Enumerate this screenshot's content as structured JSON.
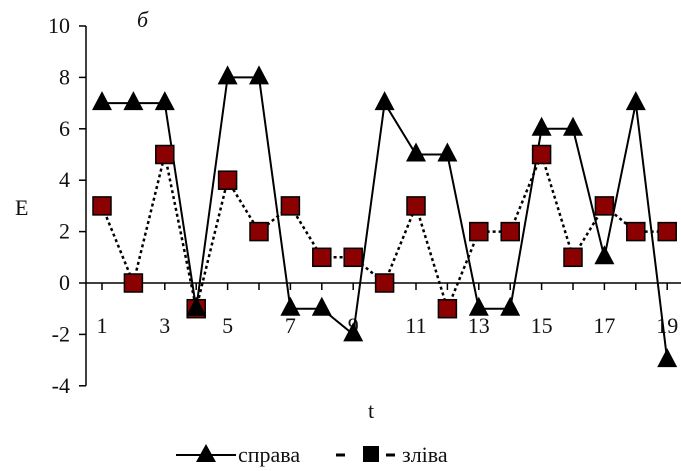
{
  "chart_data": {
    "type": "line",
    "title": "б",
    "xlabel": "t",
    "ylabel": "E",
    "ylim": [
      -4,
      10
    ],
    "yticks": [
      -4,
      -2,
      0,
      2,
      4,
      6,
      8,
      10
    ],
    "xticks": [
      1,
      3,
      5,
      7,
      9,
      11,
      13,
      15,
      17,
      19
    ],
    "x": [
      1,
      2,
      3,
      4,
      5,
      6,
      7,
      8,
      9,
      10,
      11,
      12,
      13,
      14,
      15,
      16,
      17,
      18,
      19
    ],
    "grid": false,
    "legend_position": "bottom",
    "series": [
      {
        "name": "справа",
        "marker": "triangle",
        "line_style": "solid",
        "color": "#000000",
        "values": [
          7,
          7,
          7,
          -1,
          8,
          8,
          -1,
          -1,
          -2,
          7,
          5,
          5,
          -1,
          -1,
          6,
          6,
          1,
          7,
          -3
        ]
      },
      {
        "name": "зліва",
        "marker": "square",
        "line_style": "dotted",
        "color": "#000000",
        "marker_fill": "#8b0000",
        "values": [
          3,
          0,
          5,
          -1,
          4,
          2,
          3,
          1,
          1,
          0,
          3,
          -1,
          2,
          2,
          5,
          1,
          3,
          2,
          2
        ]
      }
    ]
  }
}
